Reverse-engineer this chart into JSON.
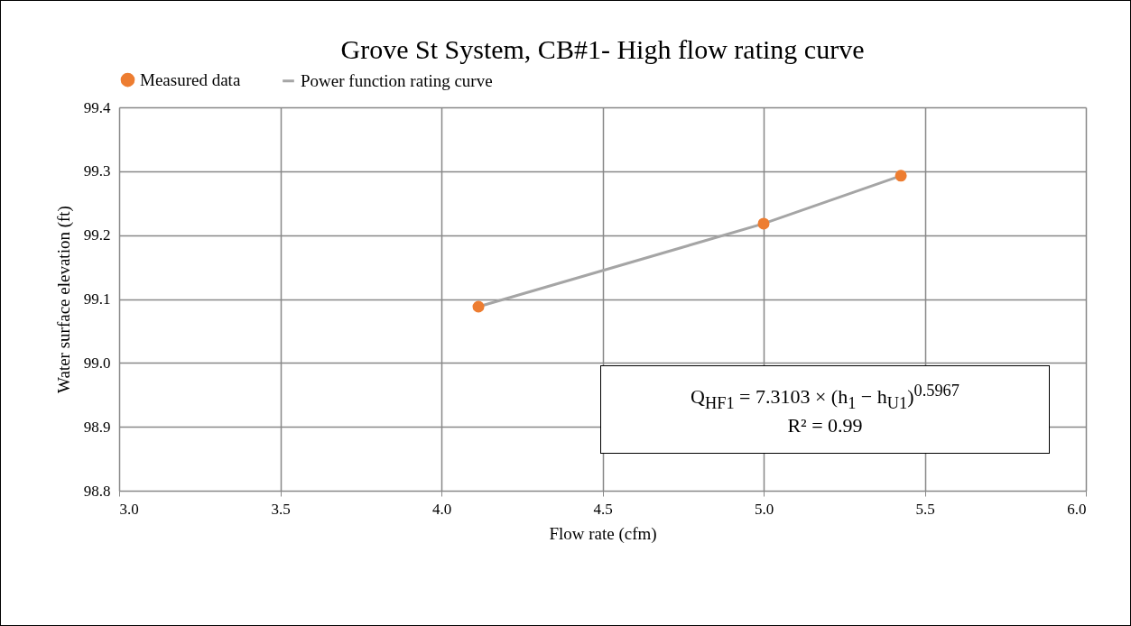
{
  "chart_data": {
    "type": "scatter",
    "title": "Grove St System, CB#1- High flow rating curve",
    "xlabel": "Flow rate (cfm)",
    "ylabel": "Water surface elevation (ft)",
    "series": [
      {
        "name": "Measured data",
        "marker": "circle",
        "color": "#ed7d31",
        "x": [
          4.115,
          5.0,
          5.426
        ],
        "values": [
          99.088,
          99.218,
          99.293
        ]
      },
      {
        "name": "Power function rating curve",
        "type": "line",
        "color": "#a5a5a5",
        "x": [
          4.115,
          5.0,
          5.426
        ],
        "values": [
          99.088,
          99.218,
          99.293
        ]
      }
    ],
    "xlim": [
      3.0,
      6.0
    ],
    "xticks": [
      {
        "value": 3,
        "label": "3.0"
      },
      3.5,
      {
        "value": 4,
        "label": "4.0"
      },
      4.5,
      {
        "value": 5,
        "label": "5.0"
      },
      5.5,
      {
        "value": 6,
        "label": "6.0"
      }
    ],
    "ylim": [
      98.8,
      99.4
    ],
    "yticks": [
      98.8,
      98.9,
      {
        "value": 99,
        "label": "99.0"
      },
      99.1,
      99.2,
      99.3,
      99.4
    ],
    "grid": true,
    "legend": "top",
    "annotations": [
      "Q$_{HF1}$ = 7.3103 × (h$_{1}$ − h$_{U1}$)$^{0.5967}$",
      "R² = 0.99"
    ]
  }
}
